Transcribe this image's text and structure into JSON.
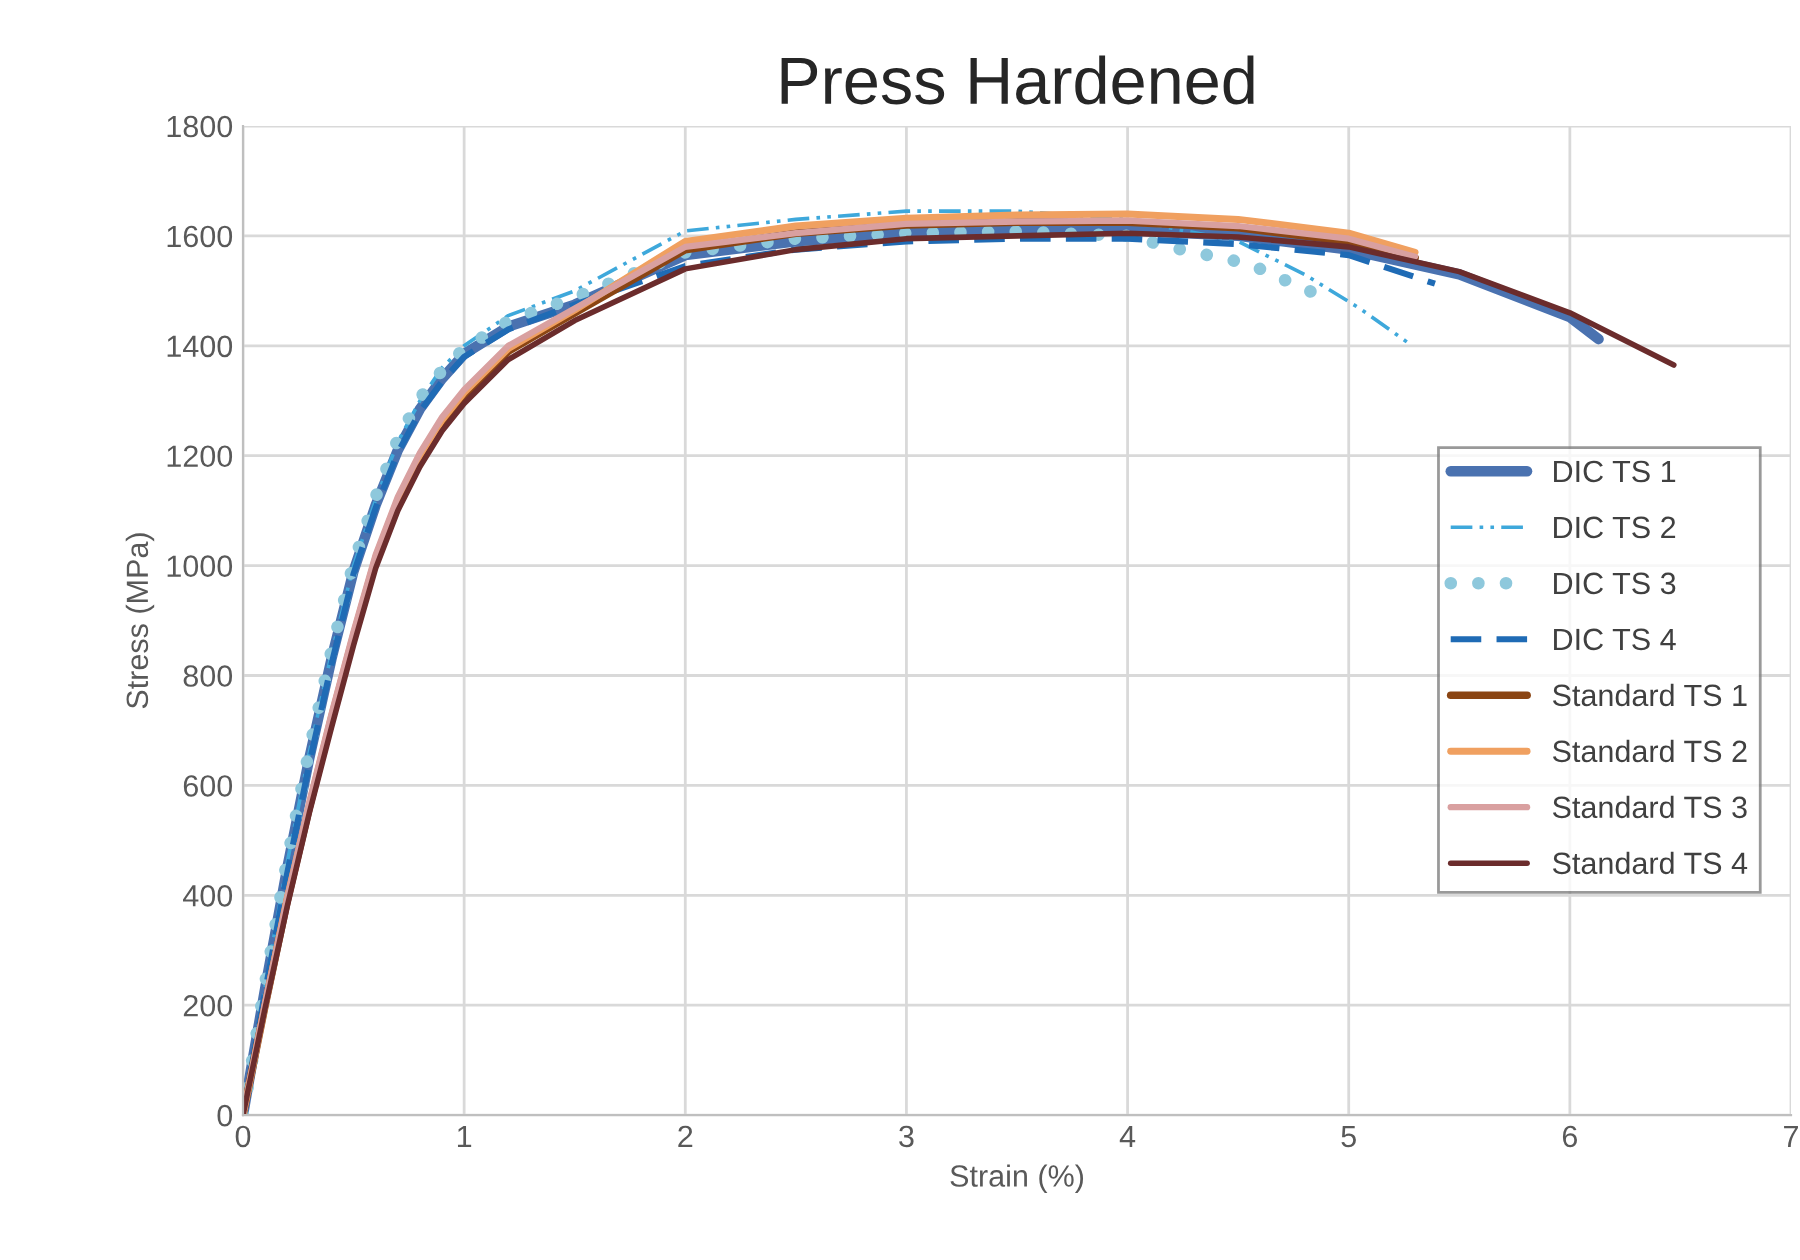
{
  "chart_data": {
    "type": "line",
    "title": "Press Hardened",
    "xlabel": "Strain (%)",
    "ylabel": "Stress (MPa)",
    "xlim": [
      0,
      7
    ],
    "ylim": [
      0,
      1800
    ],
    "xticks": [
      0,
      1,
      2,
      3,
      4,
      5,
      6,
      7
    ],
    "yticks": [
      0,
      200,
      400,
      600,
      800,
      1000,
      1200,
      1400,
      1600,
      1800
    ],
    "grid": true,
    "legend": "right",
    "marker": "none",
    "series": [
      {
        "name": "DIC TS 1",
        "color": "#4a72b0",
        "line_style": "solid",
        "x": [
          0,
          0.1,
          0.2,
          0.3,
          0.4,
          0.5,
          0.6,
          0.7,
          0.8,
          0.9,
          1.0,
          1.2,
          1.5,
          2.0,
          2.5,
          3.0,
          3.5,
          4.0,
          4.5,
          5.0,
          5.5,
          6.0,
          6.13
        ],
        "values": [
          0,
          230,
          450,
          650,
          830,
          990,
          1110,
          1210,
          1285,
          1340,
          1385,
          1435,
          1475,
          1565,
          1590,
          1605,
          1610,
          1610,
          1600,
          1575,
          1530,
          1452,
          1412
        ]
      },
      {
        "name": "DIC TS 2",
        "color": "#3ea8db",
        "line_style": "dashdot",
        "x": [
          0,
          0.1,
          0.2,
          0.3,
          0.4,
          0.5,
          0.6,
          0.7,
          0.8,
          0.9,
          1.0,
          1.2,
          1.5,
          2.0,
          2.5,
          3.0,
          3.5,
          4.0,
          4.5,
          4.8,
          5.05,
          5.27
        ],
        "values": [
          0,
          235,
          460,
          660,
          840,
          1000,
          1120,
          1225,
          1300,
          1360,
          1400,
          1455,
          1500,
          1609,
          1630,
          1645,
          1645,
          1630,
          1590,
          1530,
          1468,
          1405
        ]
      },
      {
        "name": "DIC TS 3",
        "color": "#8ec8dc",
        "line_style": "dotted",
        "x": [
          0,
          0.1,
          0.2,
          0.3,
          0.4,
          0.5,
          0.6,
          0.7,
          0.8,
          0.9,
          1.0,
          1.2,
          1.5,
          2.0,
          2.5,
          3.0,
          3.5,
          4.0,
          4.2,
          4.55,
          4.78,
          4.85
        ],
        "values": [
          0,
          240,
          465,
          665,
          845,
          1005,
          1125,
          1230,
          1305,
          1355,
          1395,
          1445,
          1488,
          1570,
          1595,
          1605,
          1608,
          1600,
          1579,
          1549,
          1507,
          1495
        ]
      },
      {
        "name": "DIC TS 4",
        "color": "#1f6bb5",
        "line_style": "dashed",
        "x": [
          0,
          0.1,
          0.2,
          0.3,
          0.4,
          0.5,
          0.6,
          0.7,
          0.8,
          0.9,
          1.0,
          1.2,
          1.5,
          2.0,
          2.5,
          3.0,
          3.5,
          4.0,
          4.5,
          5.0,
          5.39
        ],
        "values": [
          0,
          225,
          440,
          640,
          820,
          985,
          1105,
          1205,
          1280,
          1335,
          1380,
          1430,
          1475,
          1545,
          1575,
          1590,
          1595,
          1595,
          1585,
          1565,
          1513
        ]
      },
      {
        "name": "Standard TS 1",
        "color": "#8b4513",
        "line_style": "solid",
        "x": [
          0,
          0.1,
          0.2,
          0.3,
          0.4,
          0.5,
          0.6,
          0.7,
          0.8,
          0.9,
          1.0,
          1.2,
          1.5,
          2.0,
          2.5,
          3.0,
          3.5,
          4.0,
          4.5,
          5.0,
          5.3
        ],
        "values": [
          0,
          200,
          390,
          560,
          720,
          870,
          1010,
          1115,
          1195,
          1260,
          1310,
          1390,
          1460,
          1575,
          1605,
          1620,
          1625,
          1625,
          1615,
          1590,
          1560
        ]
      },
      {
        "name": "Standard TS 2",
        "color": "#f0a060",
        "line_style": "solid",
        "x": [
          0,
          0.1,
          0.2,
          0.3,
          0.4,
          0.5,
          0.6,
          0.7,
          0.8,
          0.9,
          1.0,
          1.2,
          1.5,
          2.0,
          2.5,
          3.0,
          3.5,
          4.0,
          4.5,
          5.0,
          5.3
        ],
        "values": [
          0,
          200,
          395,
          565,
          725,
          875,
          1015,
          1120,
          1200,
          1265,
          1315,
          1395,
          1465,
          1590,
          1618,
          1632,
          1638,
          1640,
          1630,
          1605,
          1570
        ]
      },
      {
        "name": "Standard TS 3",
        "color": "#d9a0a0",
        "line_style": "solid",
        "x": [
          0,
          0.1,
          0.2,
          0.3,
          0.4,
          0.5,
          0.6,
          0.7,
          0.8,
          0.9,
          1.0,
          1.2,
          1.5,
          2.0,
          2.5,
          3.0,
          3.5,
          4.0,
          4.5,
          5.0,
          5.3
        ],
        "values": [
          0,
          205,
          395,
          570,
          730,
          880,
          1020,
          1125,
          1205,
          1270,
          1320,
          1400,
          1468,
          1580,
          1605,
          1622,
          1626,
          1628,
          1618,
          1595,
          1562
        ]
      },
      {
        "name": "Standard TS 4",
        "color": "#6b2c2c",
        "line_style": "solid",
        "x": [
          0,
          0.1,
          0.2,
          0.3,
          0.4,
          0.5,
          0.6,
          0.7,
          0.8,
          0.9,
          1.0,
          1.2,
          1.5,
          2.0,
          2.5,
          3.0,
          3.5,
          4.0,
          4.5,
          5.0,
          5.5,
          6.0,
          6.47
        ],
        "values": [
          0,
          195,
          380,
          550,
          705,
          855,
          995,
          1100,
          1180,
          1245,
          1295,
          1375,
          1446,
          1540,
          1575,
          1595,
          1600,
          1605,
          1598,
          1580,
          1535,
          1460,
          1365
        ]
      }
    ]
  }
}
